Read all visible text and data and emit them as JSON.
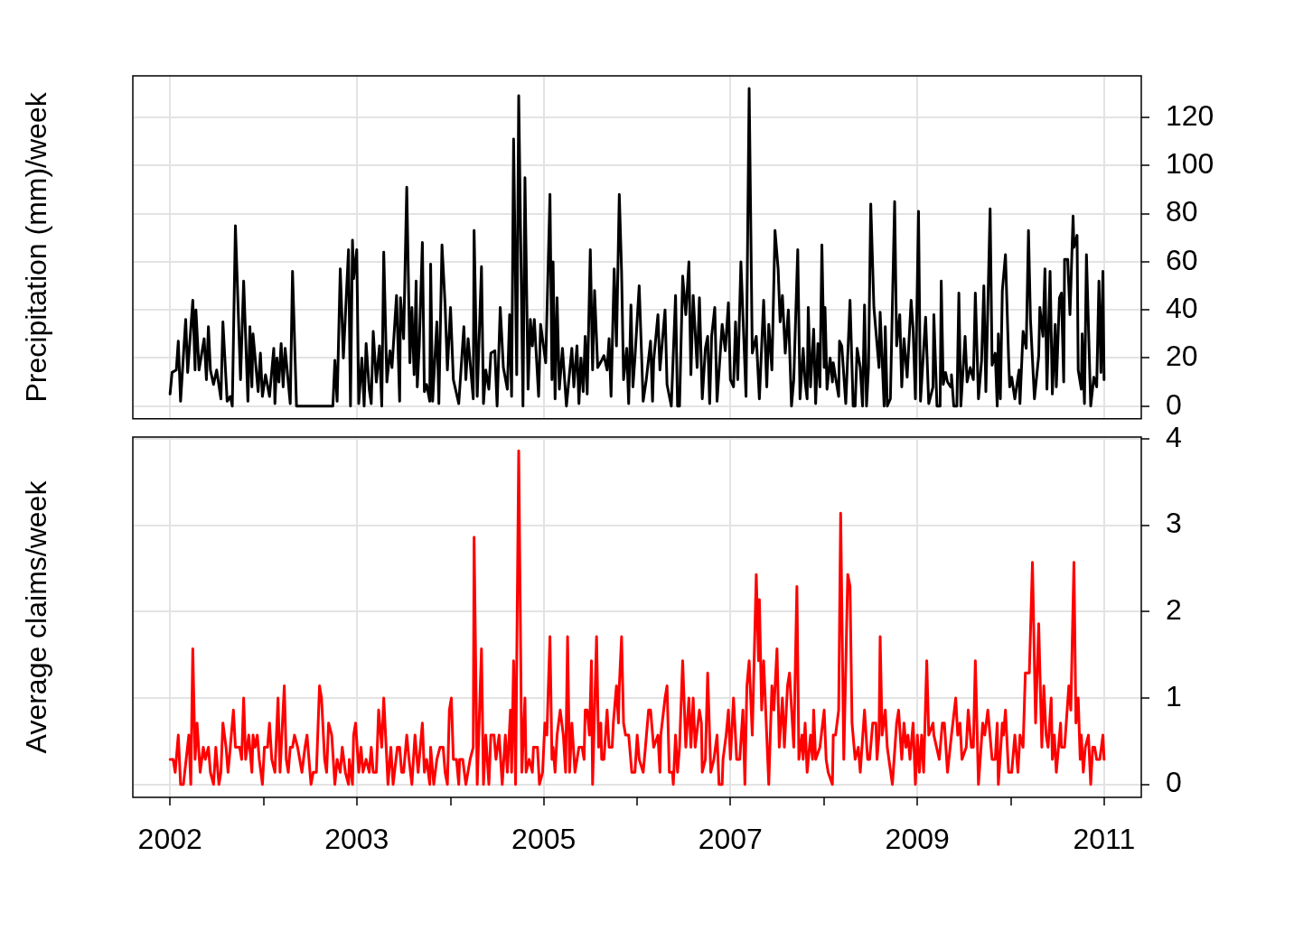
{
  "chart_data": [
    {
      "type": "line",
      "ylabel": "Precipitation (mm)/week",
      "color": "#000000",
      "grid": true,
      "tick_labels": "y",
      "xlim": [
        "2001-08-23",
        "2011-05-12"
      ],
      "xticks": [
        {
          "value": "2002-01-01",
          "label": null
        },
        {
          "value": "2003-10-20",
          "label": null
        },
        {
          "value": "2005-08-08",
          "label": null
        },
        {
          "value": "2007-05-27",
          "label": null
        },
        {
          "value": "2009-03-15",
          "label": null
        },
        {
          "value": "2011-01-01",
          "label": null
        }
      ],
      "ylim": [
        -5.3,
        137.3
      ],
      "yticks": [
        0,
        20,
        40,
        60,
        80,
        100,
        120
      ],
      "x": [
        "2002-01-01",
        "2002-01-08",
        "2002-01-23",
        "2002-01-30",
        "2002-02-07",
        "2002-02-25",
        "2002-03-04",
        "2002-03-22",
        "2002-03-30",
        "2002-04-02",
        "2002-04-13",
        "2002-05-01",
        "2002-05-09",
        "2002-05-16",
        "2002-05-23",
        "2002-06-03",
        "2002-06-14",
        "2002-06-29",
        "2002-07-06",
        "2002-07-21",
        "2002-08-01",
        "2002-08-08",
        "2002-08-19",
        "2002-09-06",
        "2002-09-17",
        "2002-10-02",
        "2002-10-09",
        "2002-10-16",
        "2002-10-20",
        "2002-11-07",
        "2002-11-15",
        "2002-11-22",
        "2002-12-03",
        "2002-12-17",
        "2003-01-01",
        "2003-01-05",
        "2003-01-12",
        "2003-01-19",
        "2003-01-27",
        "2003-02-03",
        "2003-02-10",
        "2003-02-28",
        "2003-03-08",
        "2003-03-22",
        "2003-07-28",
        "2003-08-04",
        "2003-08-12",
        "2003-08-23",
        "2003-09-03",
        "2003-09-21",
        "2003-09-28",
        "2003-10-05",
        "2003-10-09",
        "2003-10-20",
        "2003-10-27",
        "2003-11-07",
        "2003-11-15",
        "2003-11-22",
        "2003-12-03",
        "2003-12-10",
        "2003-12-17",
        "2003-12-28",
        "2004-01-08",
        "2004-01-16",
        "2004-01-23",
        "2004-02-03",
        "2004-02-14",
        "2004-02-21",
        "2004-03-08",
        "2004-03-19",
        "2004-03-22",
        "2004-04-02",
        "2004-04-13",
        "2004-04-24",
        "2004-05-01",
        "2004-05-09",
        "2004-05-16",
        "2004-05-20",
        "2004-05-27",
        "2004-06-07",
        "2004-06-14",
        "2004-06-22",
        "2004-07-03",
        "2004-07-06",
        "2004-07-13",
        "2004-07-28",
        "2004-08-04",
        "2004-08-15",
        "2004-08-26",
        "2004-09-03",
        "2004-09-14",
        "2004-09-24",
        "2004-10-13",
        "2004-10-31",
        "2004-11-07",
        "2004-11-15",
        "2004-12-03",
        "2004-12-06",
        "2004-12-17",
        "2005-01-01",
        "2005-01-08",
        "2005-01-16",
        "2005-01-27",
        "2005-02-03",
        "2005-02-17",
        "2005-02-25",
        "2005-03-08",
        "2005-03-19",
        "2005-04-02",
        "2005-04-10",
        "2005-04-17",
        "2005-04-24",
        "2005-05-05",
        "2005-05-12",
        "2005-05-27",
        "2005-06-03",
        "2005-06-14",
        "2005-06-22",
        "2005-06-29",
        "2005-07-06",
        "2005-07-21",
        "2005-07-28",
        "2005-08-15",
        "2005-08-30",
        "2005-09-06",
        "2005-09-10",
        "2005-09-17",
        "2005-09-24",
        "2005-10-02",
        "2005-10-13",
        "2005-10-27",
        "2005-11-15",
        "2005-11-22",
        "2005-12-03",
        "2005-12-10",
        "2005-12-17",
        "2005-12-25",
        "2006-01-01",
        "2006-01-08",
        "2006-01-19",
        "2006-01-27",
        "2006-02-03",
        "2006-02-14",
        "2006-02-28",
        "2006-03-08",
        "2006-03-19",
        "2006-03-26",
        "2006-04-02",
        "2006-04-13",
        "2006-04-21",
        "2006-05-01",
        "2006-05-09",
        "2006-05-16",
        "2006-05-27",
        "2006-06-03",
        "2006-06-11",
        "2006-06-18",
        "2006-06-25",
        "2006-07-10",
        "2006-07-24",
        "2006-08-04",
        "2006-08-19",
        "2006-08-26",
        "2006-08-30",
        "2006-09-14",
        "2006-09-21",
        "2006-10-09",
        "2006-10-16",
        "2006-10-31",
        "2006-11-15",
        "2006-11-22",
        "2006-11-29",
        "2006-12-10",
        "2006-12-21",
        "2007-01-01",
        "2007-01-08",
        "2007-01-16",
        "2007-01-30",
        "2007-02-07",
        "2007-02-17",
        "2007-02-28",
        "2007-03-08",
        "2007-03-15",
        "2007-03-22",
        "2007-04-02",
        "2007-04-10",
        "2007-04-28",
        "2007-05-09",
        "2007-05-20",
        "2007-05-27",
        "2007-06-07",
        "2007-06-14",
        "2007-06-22",
        "2007-07-03",
        "2007-07-10",
        "2007-07-21",
        "2007-08-01",
        "2007-08-12",
        "2007-08-26",
        "2007-09-06",
        "2007-09-21",
        "2007-10-02",
        "2007-10-09",
        "2007-10-20",
        "2007-10-31",
        "2007-11-11",
        "2007-11-18",
        "2007-11-26",
        "2007-12-06",
        "2007-12-17",
        "2007-12-28",
        "2008-01-05",
        "2008-01-19",
        "2008-01-27",
        "2008-02-07",
        "2008-02-14",
        "2008-02-21",
        "2008-02-25",
        "2008-03-04",
        "2008-03-15",
        "2008-03-22",
        "2008-03-30",
        "2008-04-06",
        "2008-04-13",
        "2008-04-21",
        "2008-04-24",
        "2008-05-01",
        "2008-05-12",
        "2008-05-20",
        "2008-05-23",
        "2008-05-31",
        "2008-06-11",
        "2008-06-14",
        "2008-06-22",
        "2008-07-06",
        "2008-07-21",
        "2008-08-01",
        "2008-08-08",
        "2008-08-15",
        "2008-08-26",
        "2008-09-03",
        "2008-09-10",
        "2008-09-17",
        "2008-09-24",
        "2008-10-02",
        "2008-10-13",
        "2008-10-31",
        "2008-11-04",
        "2008-11-18",
        "2008-11-22",
        "2008-11-29",
        "2008-12-10",
        "2008-12-25",
        "2009-01-01",
        "2009-01-12",
        "2009-01-19",
        "2009-01-27",
        "2009-02-07",
        "2009-02-21",
        "2009-02-28",
        "2009-03-08",
        "2009-03-19",
        "2009-03-26",
        "2009-04-13",
        "2009-04-24",
        "2009-05-09",
        "2009-05-12",
        "2009-05-23",
        "2009-06-03",
        "2009-06-07",
        "2009-06-14",
        "2009-06-22",
        "2009-06-29",
        "2009-07-10",
        "2009-07-13",
        "2009-07-21",
        "2009-08-01",
        "2009-08-08",
        "2009-08-15",
        "2009-08-30",
        "2009-09-06",
        "2009-09-17",
        "2009-09-28",
        "2009-10-05",
        "2009-10-16",
        "2009-10-27",
        "2009-11-04",
        "2009-11-11",
        "2009-11-26",
        "2009-12-03",
        "2009-12-14",
        "2009-12-21",
        "2009-12-25",
        "2010-01-01",
        "2010-01-08",
        "2010-01-19",
        "2010-01-30",
        "2010-02-03",
        "2010-02-10",
        "2010-02-21",
        "2010-03-08",
        "2010-03-11",
        "2010-03-22",
        "2010-04-02",
        "2010-04-10",
        "2010-04-17",
        "2010-05-01",
        "2010-05-16",
        "2010-05-20",
        "2010-05-31",
        "2010-06-07",
        "2010-06-14",
        "2010-06-25",
        "2010-07-03",
        "2010-07-13",
        "2010-07-17",
        "2010-07-28",
        "2010-08-04",
        "2010-08-12",
        "2010-08-15",
        "2010-08-26",
        "2010-09-03",
        "2010-09-14",
        "2010-09-17",
        "2010-09-28",
        "2010-10-02",
        "2010-10-13",
        "2010-10-16",
        "2010-10-24",
        "2010-10-31",
        "2010-11-15",
        "2010-11-26",
        "2010-12-06",
        "2010-12-14",
        "2010-12-21",
        "2010-12-28",
        "2011-01-01"
      ],
      "values": [
        5,
        14,
        15,
        27,
        2,
        36,
        14,
        44,
        15,
        40,
        15,
        28,
        11,
        33,
        15,
        9,
        15,
        3,
        35,
        2,
        4,
        0,
        75,
        11,
        52,
        2,
        33,
        8,
        30,
        6,
        22,
        4,
        13,
        4,
        24,
        1,
        20,
        10,
        26,
        8,
        24,
        1,
        56,
        0,
        0,
        19,
        2,
        57,
        20,
        65,
        0,
        69,
        53,
        65,
        1,
        20,
        0,
        26,
        7,
        1,
        31,
        10,
        25,
        0,
        64,
        10,
        23,
        16,
        46,
        2,
        45,
        28,
        91,
        18,
        41,
        13,
        52,
        8,
        25,
        68,
        6,
        9,
        2,
        59,
        2,
        35,
        1,
        67,
        42,
        15,
        41,
        11,
        1,
        33,
        11,
        28,
        3,
        73,
        4,
        58,
        1,
        15,
        7,
        22,
        23,
        0,
        41,
        16,
        7,
        38,
        4,
        111,
        13,
        129,
        0,
        95,
        7,
        36,
        25,
        36,
        4,
        34,
        18,
        88,
        11,
        60,
        3,
        45,
        7,
        24,
        0,
        24,
        8,
        25,
        1,
        20,
        6,
        29,
        5,
        65,
        15,
        48,
        16,
        19,
        21,
        15,
        28,
        4,
        57,
        25,
        88,
        56,
        11,
        24,
        1,
        42,
        8,
        20,
        50,
        2,
        11,
        27,
        2,
        19,
        38,
        15,
        40,
        9,
        0,
        46,
        0,
        0,
        54,
        38,
        60,
        13,
        46,
        16,
        45,
        3,
        24,
        29,
        1,
        29,
        41,
        2,
        34,
        23,
        43,
        11,
        8,
        35,
        11,
        60,
        38,
        4,
        132,
        22,
        29,
        3,
        44,
        8,
        34,
        15,
        73,
        57,
        35,
        46,
        22,
        40,
        0,
        11,
        65,
        3,
        24,
        10,
        3,
        41,
        8,
        32,
        1,
        26,
        8,
        67,
        16,
        41,
        7,
        20,
        10,
        18,
        12,
        4,
        27,
        25,
        1,
        44,
        0,
        0,
        24,
        16,
        0,
        42,
        0,
        16,
        84,
        41,
        16,
        39,
        0,
        33,
        0,
        3,
        85,
        25,
        38,
        8,
        28,
        12,
        44,
        32,
        3,
        81,
        2,
        37,
        1,
        8,
        38,
        0,
        0,
        52,
        9,
        14,
        10,
        8,
        13,
        0,
        0,
        47,
        0,
        29,
        10,
        16,
        11,
        47,
        3,
        19,
        50,
        6,
        82,
        17,
        22,
        0,
        30,
        3,
        48,
        63,
        20,
        8,
        12,
        3,
        15,
        1,
        31,
        24,
        73,
        36,
        3,
        21,
        41,
        29,
        57,
        7,
        56,
        5,
        34,
        8,
        45,
        47,
        10,
        61,
        61,
        38,
        79,
        66,
        71,
        15,
        7,
        30,
        1,
        63,
        0,
        12,
        8,
        52,
        14,
        56,
        11
      ]
    },
    {
      "type": "line",
      "ylabel": "Average claims/week",
      "color": "#ff0000",
      "grid": true,
      "xlim": [
        "2001-08-23",
        "2011-05-12"
      ],
      "xticks": [
        {
          "value": "2002-01-01",
          "label": "2002"
        },
        {
          "value": "2002-11-26",
          "label": null
        },
        {
          "value": "2003-10-20",
          "label": "2003"
        },
        {
          "value": "2004-09-14",
          "label": null
        },
        {
          "value": "2005-08-08",
          "label": "2005"
        },
        {
          "value": "2006-07-03",
          "label": null
        },
        {
          "value": "2007-05-27",
          "label": "2007"
        },
        {
          "value": "2008-04-21",
          "label": null
        },
        {
          "value": "2009-03-15",
          "label": "2009"
        },
        {
          "value": "2010-02-07",
          "label": null
        },
        {
          "value": "2011-01-01",
          "label": "2011"
        }
      ],
      "ylim": [
        -0.15,
        4.02
      ],
      "yticks": [
        0,
        1,
        2,
        3,
        4
      ],
      "x": [
        "2002-01-01",
        "2002-01-12",
        "2002-01-19",
        "2002-01-30",
        "2002-02-07",
        "2002-02-17",
        "2002-03-08",
        "2002-03-15",
        "2002-03-22",
        "2002-03-30",
        "2002-04-06",
        "2002-04-17",
        "2002-04-28",
        "2002-05-05",
        "2002-05-16",
        "2002-05-23",
        "2002-06-03",
        "2002-06-11",
        "2002-06-22",
        "2002-06-29",
        "2002-07-06",
        "2002-07-17",
        "2002-07-24",
        "2002-08-01",
        "2002-08-12",
        "2002-08-19",
        "2002-09-03",
        "2002-09-10",
        "2002-09-17",
        "2002-09-24",
        "2002-10-05",
        "2002-10-16",
        "2002-10-20",
        "2002-10-27",
        "2002-11-04",
        "2002-11-11",
        "2002-11-22",
        "2002-11-29",
        "2002-12-10",
        "2002-12-17",
        "2002-12-25",
        "2003-01-05",
        "2003-01-16",
        "2003-01-23",
        "2003-02-07",
        "2003-02-14",
        "2003-02-21",
        "2003-02-28",
        "2003-03-08",
        "2003-03-15",
        "2003-03-26",
        "2003-04-10",
        "2003-04-21",
        "2003-04-28",
        "2003-05-12",
        "2003-05-20",
        "2003-05-31",
        "2003-06-11",
        "2003-06-18",
        "2003-06-29",
        "2003-07-06",
        "2003-07-13",
        "2003-07-24",
        "2003-08-04",
        "2003-08-12",
        "2003-08-23",
        "2003-08-30",
        "2003-09-10",
        "2003-09-21",
        "2003-09-24",
        "2003-10-05",
        "2003-10-09",
        "2003-10-16",
        "2003-10-27",
        "2003-11-04",
        "2003-11-11",
        "2003-11-22",
        "2003-12-03",
        "2003-12-10",
        "2003-12-17",
        "2003-12-28",
        "2004-01-05",
        "2004-01-16",
        "2004-01-23",
        "2004-02-07",
        "2004-02-17",
        "2004-02-25",
        "2004-03-11",
        "2004-03-19",
        "2004-03-26",
        "2004-04-02",
        "2004-04-13",
        "2004-04-21",
        "2004-05-01",
        "2004-05-12",
        "2004-05-23",
        "2004-06-07",
        "2004-06-14",
        "2004-06-22",
        "2004-07-03",
        "2004-07-06",
        "2004-07-17",
        "2004-07-28",
        "2004-08-08",
        "2004-08-19",
        "2004-08-26",
        "2004-09-03",
        "2004-09-10",
        "2004-09-17",
        "2004-09-24",
        "2004-10-05",
        "2004-10-13",
        "2004-10-16",
        "2004-10-27",
        "2004-11-07",
        "2004-11-22",
        "2004-12-03",
        "2004-12-06",
        "2004-12-17",
        "2005-01-01",
        "2005-01-08",
        "2005-01-16",
        "2005-01-27",
        "2005-02-03",
        "2005-02-14",
        "2005-02-21",
        "2005-03-04",
        "2005-03-15",
        "2005-03-26",
        "2005-04-02",
        "2005-04-13",
        "2005-04-17",
        "2005-04-24",
        "2005-05-01",
        "2005-05-12",
        "2005-05-23",
        "2005-06-03",
        "2005-06-07",
        "2005-06-18",
        "2005-06-29",
        "2005-07-03",
        "2005-07-17",
        "2005-07-24",
        "2005-08-04",
        "2005-08-12",
        "2005-08-19",
        "2005-08-30",
        "2005-09-06",
        "2005-09-10",
        "2005-09-17",
        "2005-09-24",
        "2005-10-05",
        "2005-10-16",
        "2005-10-24",
        "2005-10-31",
        "2005-11-07",
        "2005-11-15",
        "2005-11-26",
        "2005-12-10",
        "2005-12-21",
        "2005-12-28",
        "2006-01-01",
        "2006-01-08",
        "2006-01-16",
        "2006-01-23",
        "2006-01-27",
        "2006-02-10",
        "2006-02-17",
        "2006-02-25",
        "2006-02-28",
        "2006-03-08",
        "2006-03-19",
        "2006-03-26",
        "2006-04-06",
        "2006-04-10",
        "2006-04-21",
        "2006-04-28",
        "2006-05-01",
        "2006-05-09",
        "2006-05-16",
        "2006-05-23",
        "2006-06-03",
        "2006-06-14",
        "2006-06-25",
        "2006-07-03",
        "2006-07-10",
        "2006-07-24",
        "2006-08-01",
        "2006-08-12",
        "2006-08-19",
        "2006-08-30",
        "2006-09-14",
        "2006-09-21",
        "2006-09-24",
        "2006-10-09",
        "2006-10-16",
        "2006-10-24",
        "2006-11-04",
        "2006-11-07",
        "2006-11-15",
        "2006-11-22",
        "2006-11-29",
        "2006-12-10",
        "2006-12-21",
        "2007-01-01",
        "2007-01-08",
        "2007-01-16",
        "2007-01-23",
        "2007-02-07",
        "2007-02-14",
        "2007-02-17",
        "2007-02-28",
        "2007-03-08",
        "2007-03-19",
        "2007-03-30",
        "2007-04-10",
        "2007-04-17",
        "2007-04-28",
        "2007-05-01",
        "2007-05-12",
        "2007-05-20",
        "2007-05-27",
        "2007-06-07",
        "2007-06-18",
        "2007-06-29",
        "2007-07-10",
        "2007-07-17",
        "2007-07-24",
        "2007-08-01",
        "2007-08-12",
        "2007-08-26",
        "2007-09-03",
        "2007-09-06",
        "2007-09-14",
        "2007-09-21",
        "2007-10-09",
        "2007-10-20",
        "2007-10-27",
        "2007-11-07",
        "2007-11-15",
        "2007-11-26",
        "2007-12-03",
        "2007-12-14",
        "2007-12-21",
        "2008-01-05",
        "2008-01-16",
        "2008-01-23",
        "2008-02-03",
        "2008-02-07",
        "2008-02-14",
        "2008-02-21",
        "2008-03-04",
        "2008-03-11",
        "2008-03-15",
        "2008-03-22",
        "2008-04-06",
        "2008-04-21",
        "2008-04-28",
        "2008-05-05",
        "2008-05-20",
        "2008-05-23",
        "2008-05-31",
        "2008-06-11",
        "2008-06-18",
        "2008-06-29",
        "2008-07-13",
        "2008-07-21",
        "2008-07-28",
        "2008-08-08",
        "2008-08-19",
        "2008-08-26",
        "2008-09-10",
        "2008-09-21",
        "2008-09-28",
        "2008-10-09",
        "2008-10-20",
        "2008-10-24",
        "2008-10-31",
        "2008-11-04",
        "2008-11-11",
        "2008-11-22",
        "2008-11-29",
        "2008-12-17",
        "2009-01-01",
        "2009-01-08",
        "2009-01-19",
        "2009-01-27",
        "2009-02-03",
        "2009-02-10",
        "2009-02-17",
        "2009-02-28",
        "2009-03-08",
        "2009-03-15",
        "2009-03-22",
        "2009-03-30",
        "2009-04-06",
        "2009-04-17",
        "2009-04-24",
        "2009-05-09",
        "2009-05-12",
        "2009-05-31",
        "2009-06-11",
        "2009-06-18",
        "2009-06-29",
        "2009-07-13",
        "2009-07-28",
        "2009-08-04",
        "2009-08-12",
        "2009-08-19",
        "2009-09-03",
        "2009-09-10",
        "2009-09-21",
        "2009-09-28",
        "2009-10-05",
        "2009-10-16",
        "2009-10-31",
        "2009-11-07",
        "2009-11-18",
        "2009-12-03",
        "2009-12-14",
        "2009-12-21",
        "2009-12-25",
        "2010-01-08",
        "2010-01-12",
        "2010-01-19",
        "2010-01-30",
        "2010-02-10",
        "2010-02-21",
        "2010-03-04",
        "2010-03-11",
        "2010-03-22",
        "2010-03-30",
        "2010-04-13",
        "2010-04-24",
        "2010-05-05",
        "2010-05-16",
        "2010-05-27",
        "2010-06-03",
        "2010-06-11",
        "2010-06-18",
        "2010-06-29",
        "2010-07-03",
        "2010-07-10",
        "2010-07-17",
        "2010-08-01",
        "2010-08-04",
        "2010-08-15",
        "2010-08-30",
        "2010-09-06",
        "2010-09-17",
        "2010-09-24",
        "2010-10-02",
        "2010-10-09",
        "2010-10-13",
        "2010-10-20",
        "2010-10-27",
        "2010-11-07",
        "2010-11-15",
        "2010-11-22",
        "2010-11-29",
        "2010-12-06",
        "2010-12-17",
        "2010-12-28",
        "2011-01-01"
      ],
      "values": [
        0.29,
        0.29,
        0.14,
        0.57,
        0,
        0,
        0.57,
        0,
        1.57,
        0.29,
        0.71,
        0.14,
        0.43,
        0.29,
        0.43,
        0.14,
        0,
        0.43,
        0,
        0.14,
        0.71,
        0.43,
        0.14,
        0.43,
        0.86,
        0.43,
        0.43,
        0.29,
        1,
        0.29,
        0.57,
        0.14,
        0.57,
        0.43,
        0.57,
        0.29,
        0,
        0.43,
        0.43,
        0.71,
        0.29,
        0.14,
        1,
        0.14,
        1.14,
        0.29,
        0.14,
        0.43,
        0.43,
        0.57,
        0.43,
        0.14,
        0.43,
        0.57,
        0,
        0.14,
        0.14,
        1.14,
        1,
        0.29,
        0.14,
        0.71,
        0.57,
        0,
        0.29,
        0.14,
        0.43,
        0.14,
        0,
        0.29,
        0,
        0.57,
        0.71,
        0.14,
        0.43,
        0.14,
        0.29,
        0.14,
        0.43,
        0.14,
        0.14,
        0.86,
        0.43,
        1,
        0,
        0.43,
        0,
        0.43,
        0.43,
        0.14,
        0.14,
        0.57,
        0.29,
        0,
        0.57,
        0.14,
        0.71,
        0.14,
        0.29,
        0,
        0.43,
        0,
        0.29,
        0.43,
        0.43,
        0.14,
        0,
        0.86,
        1,
        0.29,
        0.29,
        0,
        0.29,
        0.29,
        0,
        0.29,
        0.43,
        2.86,
        0,
        1.57,
        0,
        0.57,
        0,
        0.57,
        0.57,
        0.29,
        0.57,
        0,
        0.57,
        0.14,
        0.86,
        0.14,
        1.43,
        0,
        3.86,
        0.14,
        1,
        0.14,
        0.29,
        0.14,
        0.43,
        0.43,
        0,
        0.14,
        0.71,
        0.57,
        1.71,
        0.29,
        0.43,
        0.14,
        0.57,
        0.86,
        0.57,
        0.14,
        1.71,
        0.14,
        0.71,
        0.14,
        0.43,
        0.43,
        0.29,
        0.86,
        0.86,
        0.57,
        1.43,
        0,
        1.71,
        0.43,
        0.71,
        0.29,
        0.29,
        0.86,
        0.43,
        0.43,
        0.71,
        1.14,
        0.71,
        1.14,
        1.71,
        0.71,
        0.57,
        0.57,
        0.14,
        0.14,
        0.57,
        0.29,
        0.14,
        0.43,
        0.86,
        0.86,
        0.43,
        0.57,
        0.14,
        0.57,
        1,
        1.14,
        0.14,
        0.14,
        0,
        0.57,
        0.14,
        0.43,
        1.43,
        0.43,
        1,
        0.43,
        1,
        0.43,
        0.86,
        0.71,
        0.14,
        0.29,
        1.29,
        0.14,
        0.29,
        0.57,
        0,
        0,
        0.29,
        0.57,
        0.86,
        0.29,
        1,
        0.29,
        0.29,
        0.86,
        0,
        1.14,
        1.43,
        0.57,
        2.43,
        1.43,
        2.14,
        0.86,
        1.43,
        0,
        1.14,
        0.86,
        1.57,
        0.43,
        1,
        0.43,
        1.14,
        1.29,
        0.43,
        2.29,
        0.29,
        0.57,
        0.29,
        0.71,
        0.14,
        0.57,
        0.29,
        0.86,
        0.29,
        0.43,
        0.86,
        0.29,
        0.14,
        0,
        0.57,
        0.57,
        0.86,
        3.14,
        0.29,
        2.43,
        2.29,
        0.71,
        0.29,
        0.43,
        0.14,
        0.86,
        0.29,
        0.29,
        0.71,
        0.71,
        0.29,
        0.57,
        1.71,
        0.57,
        0.86,
        0.43,
        0,
        0.71,
        0.86,
        0.29,
        0.71,
        0.43,
        0.57,
        0.29,
        0.71,
        0,
        0.57,
        0.14,
        0.57,
        0.14,
        1.43,
        0.57,
        0.71,
        0.57,
        0.29,
        0.71,
        0.71,
        0.14,
        0.57,
        1,
        0.57,
        0.71,
        0.29,
        0.43,
        0.86,
        0.43,
        0.43,
        1.43,
        0,
        0.71,
        0.57,
        0.86,
        0.29,
        0.29,
        0.71,
        0,
        0.71,
        0.57,
        0.86,
        0.14,
        0.14,
        0.57,
        0.14,
        0.57,
        0.43,
        1.29,
        1.29,
        2.57,
        0.71,
        1.86,
        0.43,
        1.14,
        0.57,
        0.43,
        1,
        0.29,
        0.57,
        0.14,
        0.71,
        0.43,
        0.43,
        1.14,
        0.86,
        2.57,
        0.71,
        1,
        0.29,
        0.57,
        0.14,
        0.43,
        0.57,
        0,
        0.43,
        0.43,
        0.29,
        0.29,
        0.57,
        0.29
      ]
    }
  ]
}
